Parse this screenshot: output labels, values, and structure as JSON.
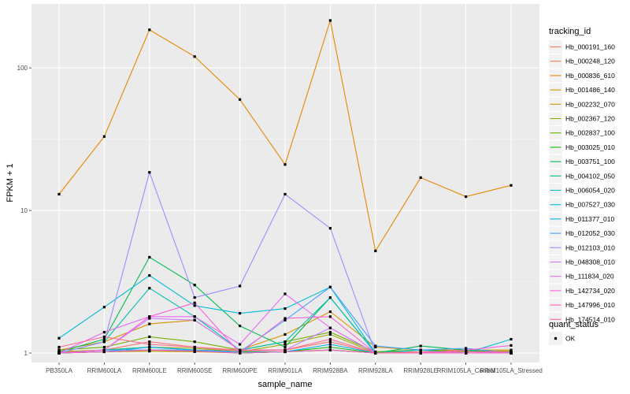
{
  "chart_data": {
    "type": "line",
    "xlabel": "sample_name",
    "ylabel": "FPKM + 1",
    "y_scale": "log10",
    "ylim": [
      0.9,
      240
    ],
    "y_ticks": [
      {
        "value": 1,
        "label": "1"
      },
      {
        "value": 10,
        "label": "10"
      },
      {
        "value": 100,
        "label": "100"
      }
    ],
    "background": "#ebebeb",
    "grid": true,
    "legend_position": "right",
    "categories": [
      "PB350LA",
      "RRIM600LA",
      "RRIM600LE",
      "RRIM600SE",
      "RRIM600PE",
      "RRIM901LA",
      "RRIM928BA",
      "RRIM928LA",
      "RRIM928LE",
      "RRIM105LA_Control",
      "RRIM105LA_Stressed"
    ],
    "legend": {
      "title": "tracking_id",
      "entries": [
        {
          "label": "Hb_000191_160",
          "color": "#F8766D"
        },
        {
          "label": "Hb_000248_120",
          "color": "#F07F48"
        },
        {
          "label": "Hb_000836_610",
          "color": "#E58700"
        },
        {
          "label": "Hb_001486_140",
          "color": "#D79400"
        },
        {
          "label": "Hb_002232_070",
          "color": "#B79F00"
        },
        {
          "label": "Hb_002367_120",
          "color": "#9EA700"
        },
        {
          "label": "Hb_002837_100",
          "color": "#6FB000"
        },
        {
          "label": "Hb_003025_010",
          "color": "#19B70C"
        },
        {
          "label": "Hb_003751_100",
          "color": "#00BB56"
        },
        {
          "label": "Hb_004102_050",
          "color": "#00BE87"
        },
        {
          "label": "Hb_006054_020",
          "color": "#00C0B1"
        },
        {
          "label": "Hb_007527_030",
          "color": "#00BCD8"
        },
        {
          "label": "Hb_011377_010",
          "color": "#00B0F6"
        },
        {
          "label": "Hb_012052_030",
          "color": "#45A0FF"
        },
        {
          "label": "Hb_012103_010",
          "color": "#9F8CFF"
        },
        {
          "label": "Hb_048308_010",
          "color": "#C77CFF"
        },
        {
          "label": "Hb_111834_020",
          "color": "#E76BF3"
        },
        {
          "label": "Hb_142734_020",
          "color": "#FA62DB"
        },
        {
          "label": "Hb_147996_010",
          "color": "#FF62BC"
        },
        {
          "label": "Hb_174514_010",
          "color": "#FF6C91"
        }
      ]
    },
    "shape_legend": {
      "title": "quant_status",
      "entries": [
        {
          "label": "OK"
        }
      ]
    },
    "series": [
      {
        "name": "Hb_000191_160",
        "color": "#F8766D",
        "values": [
          1.02,
          1.05,
          1.2,
          1.1,
          1.03,
          1.05,
          1.2,
          1.0,
          1.02,
          1.03,
          1.02
        ]
      },
      {
        "name": "Hb_000248_120",
        "color": "#F07F48",
        "values": [
          1.0,
          1.02,
          1.05,
          1.03,
          1.0,
          1.02,
          1.05,
          1.0,
          1.0,
          1.0,
          1.0
        ]
      },
      {
        "name": "Hb_000836_610",
        "color": "#E58700",
        "values": [
          13,
          33,
          185,
          120,
          60,
          21,
          215,
          5.2,
          17,
          12.5,
          15
        ]
      },
      {
        "name": "Hb_001486_140",
        "color": "#D79400",
        "values": [
          1.05,
          1.2,
          1.6,
          1.7,
          1.05,
          1.35,
          1.95,
          1.1,
          1.05,
          1.05,
          1.05
        ]
      },
      {
        "name": "Hb_002232_070",
        "color": "#B79F00",
        "values": [
          1.0,
          1.02,
          1.03,
          1.02,
          1.0,
          1.02,
          1.05,
          1.0,
          1.0,
          1.0,
          1.0
        ]
      },
      {
        "name": "Hb_002367_120",
        "color": "#9EA700",
        "values": [
          1.02,
          1.05,
          1.1,
          1.08,
          1.02,
          1.15,
          1.35,
          1.0,
          1.02,
          1.02,
          1.02
        ]
      },
      {
        "name": "Hb_002837_100",
        "color": "#6FB000",
        "values": [
          1.05,
          1.1,
          1.3,
          1.2,
          1.05,
          1.2,
          1.4,
          1.02,
          1.05,
          1.03,
          1.03
        ]
      },
      {
        "name": "Hb_003025_010",
        "color": "#19B70C",
        "values": [
          1.0,
          1.02,
          1.05,
          1.04,
          1.0,
          1.02,
          1.1,
          1.0,
          1.0,
          1.0,
          1.0
        ]
      },
      {
        "name": "Hb_003751_100",
        "color": "#00BB56",
        "values": [
          1.02,
          1.25,
          4.7,
          3.0,
          1.55,
          1.1,
          2.45,
          1.0,
          1.12,
          1.05,
          1.0
        ]
      },
      {
        "name": "Hb_004102_050",
        "color": "#00BE87",
        "values": [
          1.0,
          1.05,
          1.1,
          1.05,
          1.02,
          1.02,
          1.05,
          1.0,
          1.0,
          1.0,
          1.0
        ]
      },
      {
        "name": "Hb_006054_020",
        "color": "#00C0B1",
        "values": [
          1.0,
          1.2,
          2.85,
          1.8,
          1.05,
          1.2,
          2.45,
          1.0,
          1.05,
          1.0,
          1.0
        ]
      },
      {
        "name": "Hb_007527_030",
        "color": "#00BCD8",
        "values": [
          1.27,
          2.1,
          3.5,
          2.15,
          1.9,
          2.05,
          2.9,
          1.0,
          1.0,
          1.0,
          1.25
        ]
      },
      {
        "name": "Hb_011377_010",
        "color": "#00B0F6",
        "values": [
          1.0,
          1.02,
          1.1,
          1.05,
          1.0,
          1.02,
          1.15,
          1.0,
          1.0,
          1.0,
          1.0
        ]
      },
      {
        "name": "Hb_012052_030",
        "color": "#45A0FF",
        "values": [
          1.0,
          1.05,
          1.05,
          1.05,
          1.02,
          1.7,
          2.9,
          1.12,
          1.05,
          1.08,
          1.0
        ]
      },
      {
        "name": "Hb_012103_010",
        "color": "#9F8CFF",
        "values": [
          1.0,
          1.2,
          18.5,
          2.45,
          2.95,
          13,
          7.5,
          1.0,
          1.0,
          1.0,
          1.0
        ]
      },
      {
        "name": "Hb_048308_010",
        "color": "#C77CFF",
        "values": [
          1.0,
          1.05,
          1.75,
          1.7,
          1.05,
          1.05,
          1.5,
          1.0,
          1.0,
          1.0,
          1.0
        ]
      },
      {
        "name": "Hb_111834_020",
        "color": "#E76BF3",
        "values": [
          1.0,
          1.4,
          1.8,
          1.8,
          1.15,
          2.6,
          1.5,
          1.0,
          1.0,
          1.02,
          1.0
        ]
      },
      {
        "name": "Hb_142734_020",
        "color": "#FA62DB",
        "values": [
          1.0,
          1.05,
          1.8,
          2.25,
          1.0,
          1.75,
          1.8,
          1.0,
          1.0,
          1.05,
          1.13
        ]
      },
      {
        "name": "Hb_147996_010",
        "color": "#FF62BC",
        "values": [
          1.0,
          1.02,
          1.05,
          1.03,
          1.0,
          1.02,
          1.05,
          1.0,
          1.0,
          1.0,
          1.0
        ]
      },
      {
        "name": "Hb_174514_010",
        "color": "#FF6C91",
        "values": [
          1.1,
          1.3,
          1.15,
          1.1,
          1.05,
          1.05,
          1.25,
          1.0,
          1.02,
          1.02,
          1.02
        ]
      }
    ]
  }
}
